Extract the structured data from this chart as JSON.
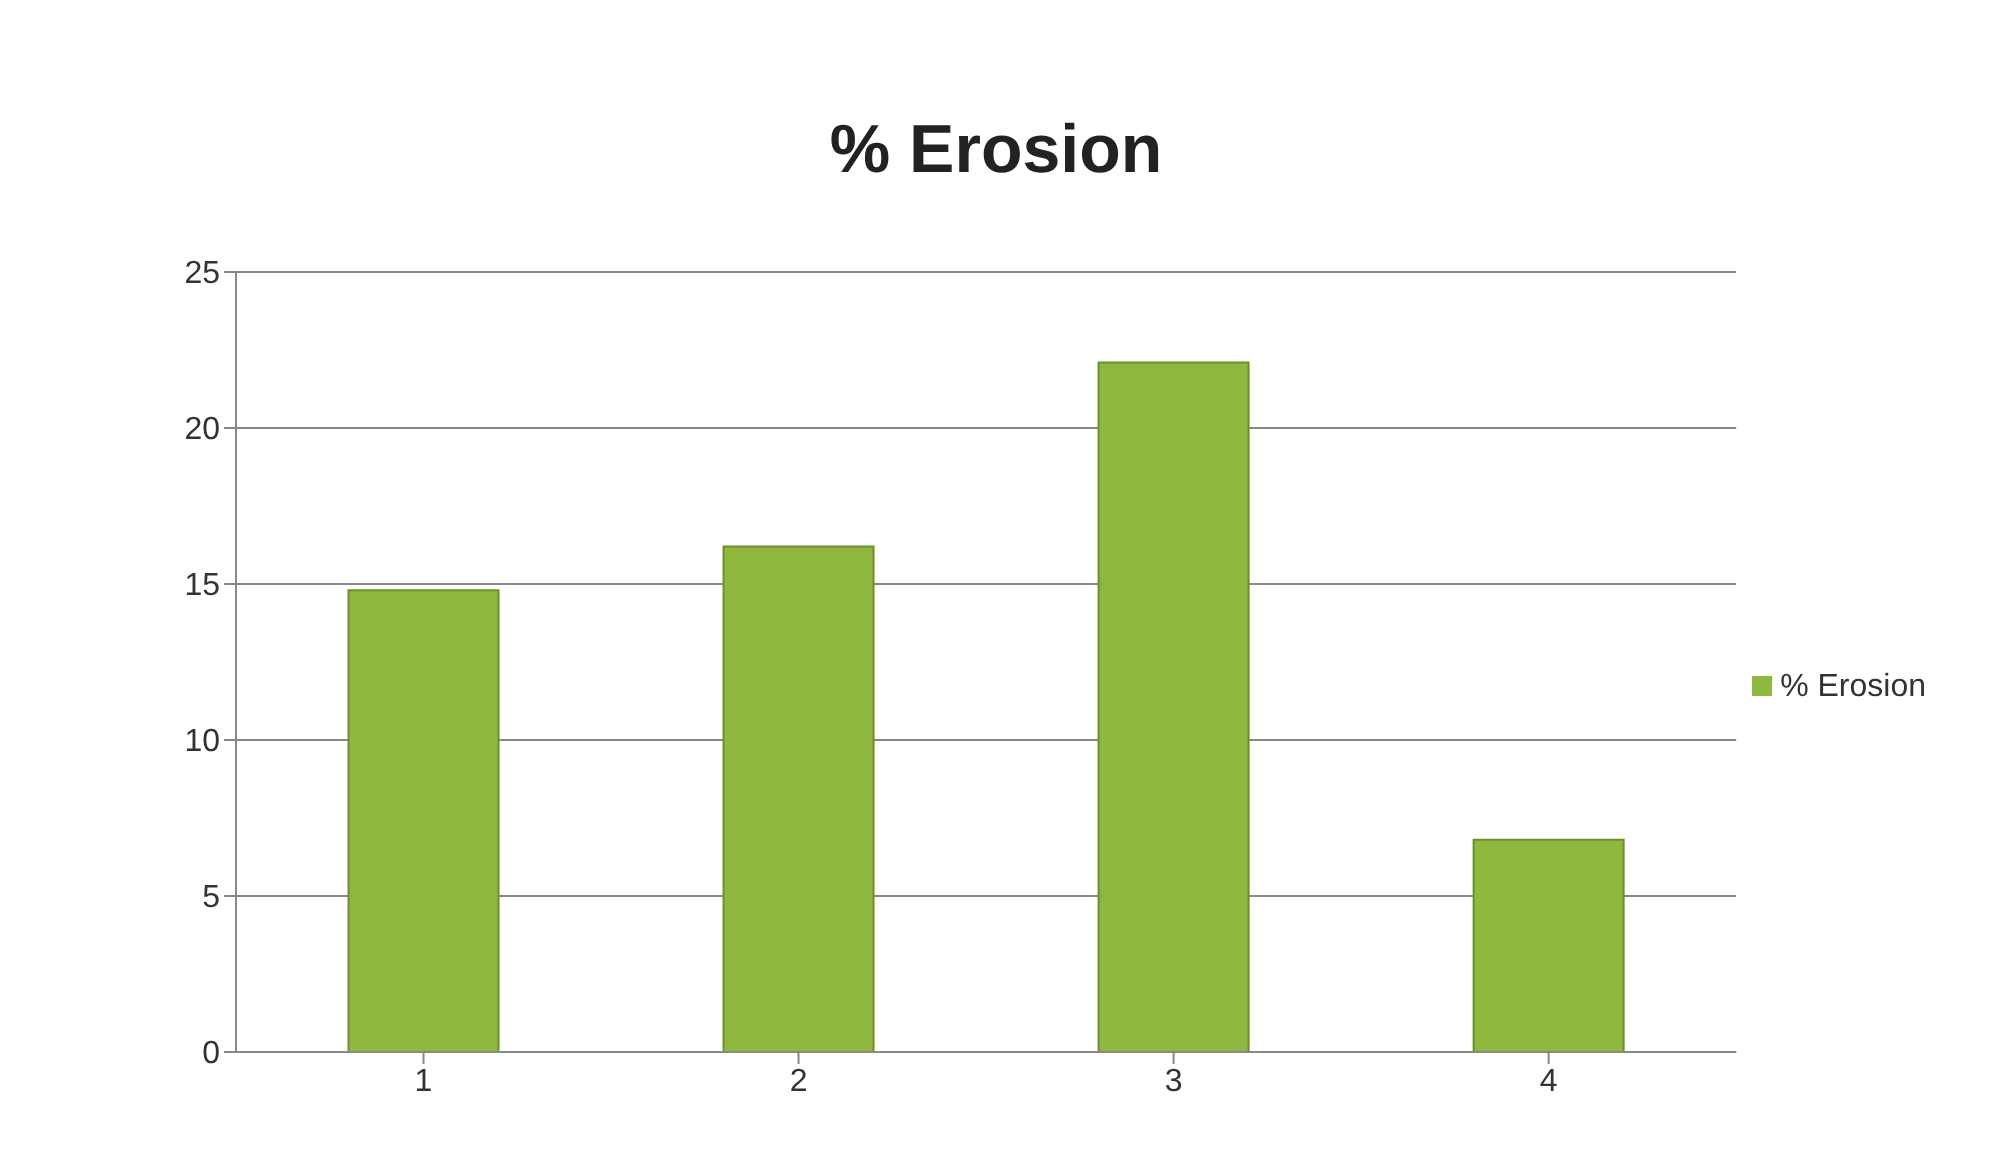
{
  "chart_data": {
    "type": "bar",
    "title": "% Erosion",
    "categories": [
      "1",
      "2",
      "3",
      "4"
    ],
    "series": [
      {
        "name": "% Erosion",
        "color": "#8fb83f",
        "values": [
          14.8,
          16.2,
          22.1,
          6.8
        ]
      }
    ],
    "ylim": [
      0,
      25
    ],
    "yticks": [
      0,
      5,
      10,
      15,
      20,
      25
    ],
    "grid": "y",
    "legend": "right"
  }
}
